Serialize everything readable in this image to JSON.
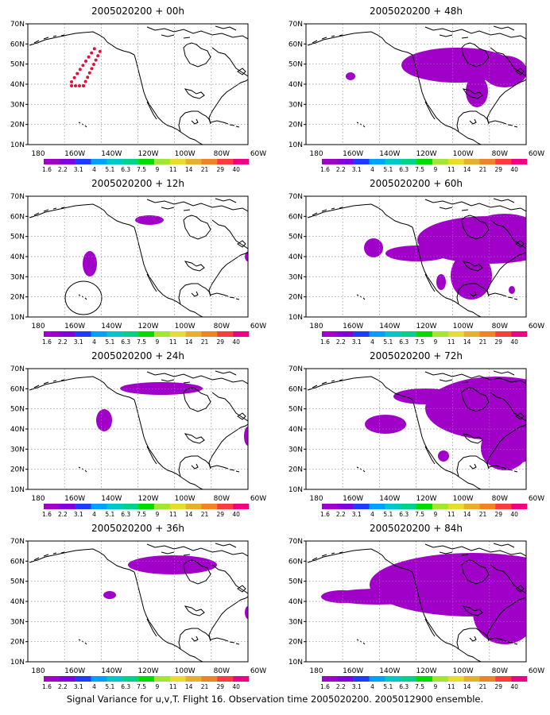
{
  "figure": {
    "caption": "Signal Variance for u,v,T. Flight 16. Observation time 2005020200. 2005012900 ensemble."
  },
  "axes": {
    "lat_labels": [
      "70N",
      "60N",
      "50N",
      "40N",
      "30N",
      "20N",
      "10N"
    ],
    "lon_labels": [
      "180",
      "160W",
      "140W",
      "120W",
      "100W",
      "80W",
      "60W"
    ]
  },
  "colorbar": {
    "labels": [
      "1.6",
      "2.2",
      "3.1",
      "4",
      "5.1",
      "6.3",
      "7.5",
      "9",
      "11",
      "14",
      "21",
      "29",
      "40"
    ],
    "colors": [
      "#a000c8",
      "#8200dc",
      "#1e3cff",
      "#00a0ff",
      "#00c8c8",
      "#00d28c",
      "#00dc00",
      "#a0e632",
      "#e6dc32",
      "#e6af2d",
      "#f08228",
      "#fa3c3c",
      "#f00082"
    ]
  },
  "colors": {
    "signal_fill": "#a000c8",
    "observation_marker": "#dc143c"
  },
  "panels": [
    {
      "title": "2005020200 + 00h"
    },
    {
      "title": "2005020200 + 48h"
    },
    {
      "title": "2005020200 + 12h"
    },
    {
      "title": "2005020200 + 60h"
    },
    {
      "title": "2005020200 + 24h"
    },
    {
      "title": "2005020200 + 72h"
    },
    {
      "title": "2005020200 + 36h"
    },
    {
      "title": "2005020200 + 84h"
    }
  ]
}
